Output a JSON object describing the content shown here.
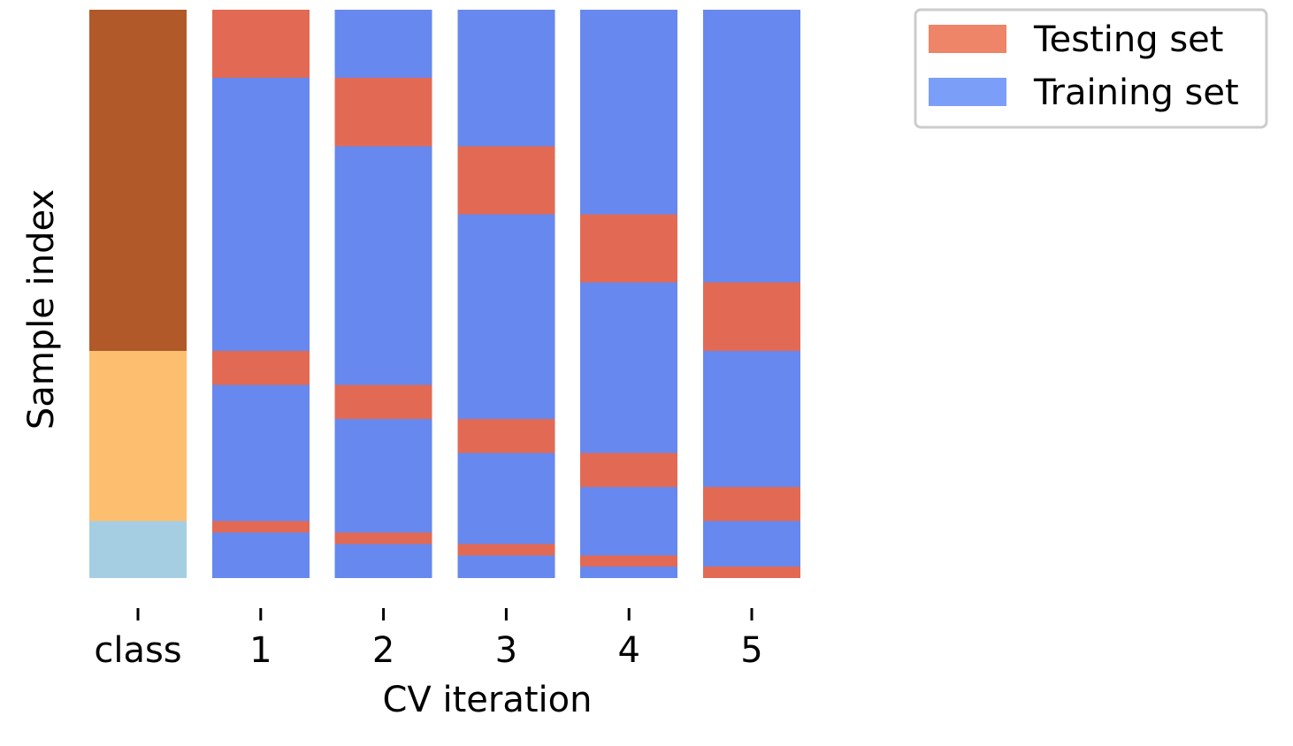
{
  "chart_data": {
    "type": "heatmap",
    "title": "",
    "xlabel": "CV iteration",
    "ylabel": "Sample index",
    "categories": [
      "class",
      "1",
      "2",
      "3",
      "4",
      "5"
    ],
    "n_samples": 100,
    "class_column": {
      "label": "class",
      "segments": [
        {
          "class": 0,
          "start": 0,
          "end": 60,
          "color": "#b15928"
        },
        {
          "class": 1,
          "start": 60,
          "end": 90,
          "color": "#fdbf6f"
        },
        {
          "class": 2,
          "start": 90,
          "end": 100,
          "color": "#a6cee3"
        }
      ]
    },
    "folds": [
      {
        "label": "1",
        "test": [
          [
            0,
            12
          ],
          [
            60,
            66
          ],
          [
            90,
            92
          ]
        ]
      },
      {
        "label": "2",
        "test": [
          [
            12,
            24
          ],
          [
            66,
            72
          ],
          [
            92,
            94
          ]
        ]
      },
      {
        "label": "3",
        "test": [
          [
            24,
            36
          ],
          [
            72,
            78
          ],
          [
            94,
            96
          ]
        ]
      },
      {
        "label": "4",
        "test": [
          [
            36,
            48
          ],
          [
            78,
            84
          ],
          [
            96,
            98
          ]
        ]
      },
      {
        "label": "5",
        "test": [
          [
            48,
            60
          ],
          [
            84,
            90
          ],
          [
            98,
            100
          ]
        ]
      }
    ],
    "colors": {
      "testing": "#e26a54",
      "training": "#6788ee",
      "legend_testing": "#ee8468",
      "legend_training": "#7b9ff9"
    },
    "legend": {
      "placement": "upper-right, outside plot",
      "entries": [
        {
          "label": "Testing set",
          "color": "#ee8468"
        },
        {
          "label": "Training set",
          "color": "#7b9ff9"
        }
      ]
    },
    "grid": false
  }
}
